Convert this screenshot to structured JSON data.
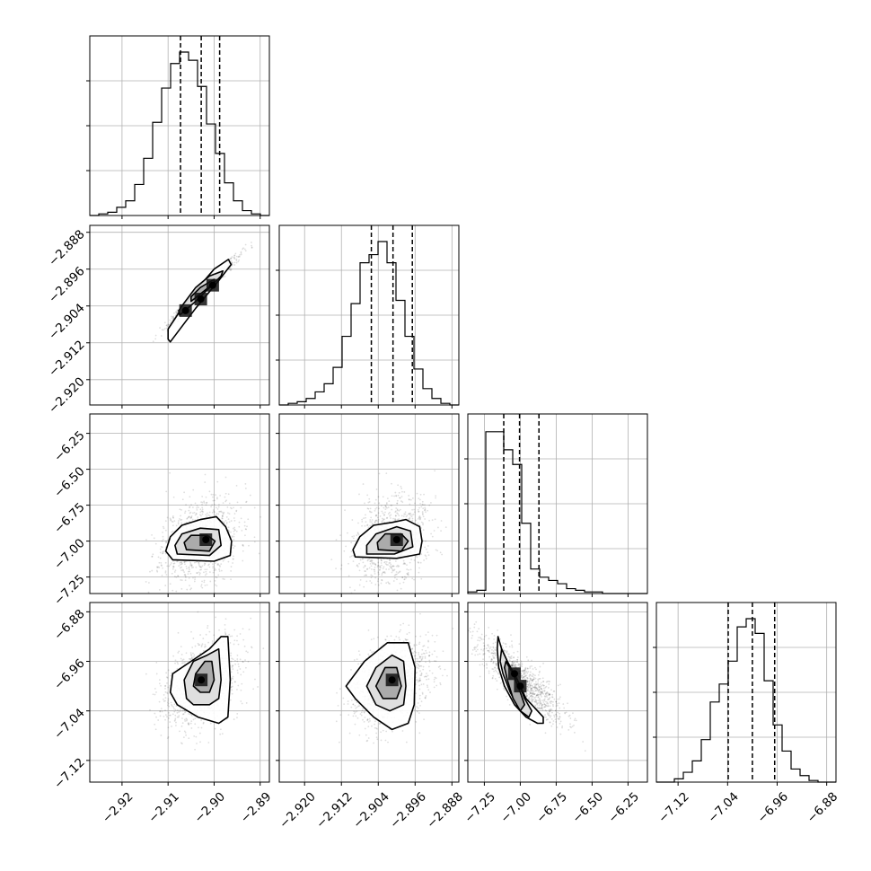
{
  "chart_data": {
    "type": "corner",
    "parameters": [
      {
        "range": [
          -2.927,
          -2.888
        ],
        "ticks": [
          {
            "value": -2.92,
            "label": "−2.92"
          },
          {
            "value": -2.91,
            "label": "−2.91"
          },
          {
            "value": -2.9,
            "label": "−2.90"
          },
          {
            "value": -2.89,
            "label": "−2.89"
          }
        ],
        "quantiles": [
          -2.9073,
          -2.9028,
          -2.8988
        ],
        "hist": {
          "edges_from": -2.927,
          "bin_width": 0.00195,
          "values": [
            0,
            0.01,
            0.02,
            0.05,
            0.09,
            0.19,
            0.35,
            0.57,
            0.78,
            0.93,
            1.0,
            0.95,
            0.79,
            0.56,
            0.38,
            0.2,
            0.09,
            0.03,
            0.01,
            0
          ]
        }
      },
      {
        "range": [
          -2.9255,
          -2.8865
        ],
        "ticks": [
          {
            "value": -2.92,
            "label": "−2.920"
          },
          {
            "value": -2.912,
            "label": "−2.912"
          },
          {
            "value": -2.904,
            "label": "−2.904"
          },
          {
            "value": -2.896,
            "label": "−2.896"
          },
          {
            "value": -2.888,
            "label": "−2.888"
          }
        ],
        "quantiles": [
          -2.9055,
          -2.9008,
          -2.8966
        ],
        "hist": {
          "edges_from": -2.9255,
          "bin_width": 0.00195,
          "values": [
            0,
            0.01,
            0.02,
            0.04,
            0.08,
            0.13,
            0.23,
            0.42,
            0.62,
            0.87,
            0.92,
            1.0,
            0.87,
            0.64,
            0.42,
            0.22,
            0.1,
            0.04,
            0.01,
            0
          ]
        }
      },
      {
        "range": [
          -7.365,
          -6.115
        ],
        "ticks": [
          {
            "value": -7.25,
            "label": "−7.25"
          },
          {
            "value": -7.0,
            "label": "−7.00"
          },
          {
            "value": -6.75,
            "label": "−6.75"
          },
          {
            "value": -6.5,
            "label": "−6.50"
          },
          {
            "value": -6.25,
            "label": "−6.25"
          }
        ],
        "quantiles": [
          -7.115,
          -7.005,
          -6.87
        ],
        "hist": {
          "edges_from": -7.365,
          "bin_width": 0.0625,
          "values": [
            0.01,
            0.02,
            0.99,
            0.99,
            0.88,
            0.79,
            0.43,
            0.15,
            0.1,
            0.08,
            0.06,
            0.03,
            0.02,
            0.01,
            0.01,
            0,
            0,
            0,
            0,
            0
          ]
        }
      },
      {
        "range": [
          -7.155,
          -6.865
        ],
        "ticks": [
          {
            "value": -7.12,
            "label": "−7.12"
          },
          {
            "value": -7.04,
            "label": "−7.04"
          },
          {
            "value": -6.96,
            "label": "−6.96"
          },
          {
            "value": -6.88,
            "label": "−6.88"
          }
        ],
        "quantiles": [
          -7.039,
          -7.0,
          -6.964
        ],
        "hist": {
          "edges_from": -7.155,
          "bin_width": 0.0145,
          "values": [
            0,
            0,
            0.02,
            0.06,
            0.13,
            0.26,
            0.49,
            0.6,
            0.74,
            0.95,
            1.0,
            0.91,
            0.62,
            0.35,
            0.19,
            0.08,
            0.04,
            0.01,
            0,
            0
          ]
        }
      }
    ],
    "pairs": [
      {
        "col": 0,
        "row": 1,
        "mean": [
          -2.9027,
          -2.901
        ],
        "sd": [
          0.0035,
          0.0035
        ],
        "corr": 0.98,
        "n": 1100,
        "seed": 7,
        "contours": [
          [
            [
              -2.9095,
              -2.9118
            ],
            [
              -2.904,
              -2.9045
            ],
            [
              -2.899,
              -2.8985
            ],
            [
              -2.8963,
              -2.895
            ],
            [
              -2.8969,
              -2.8939
            ],
            [
              -2.9,
              -2.896
            ],
            [
              -2.906,
              -2.903
            ],
            [
              -2.91,
              -2.909
            ],
            [
              -2.91,
              -2.9112
            ]
          ],
          [
            [
              -2.9075,
              -2.906
            ],
            [
              -2.904,
              -2.903
            ],
            [
              -2.8985,
              -2.8975
            ],
            [
              -2.8981,
              -2.8964
            ],
            [
              -2.901,
              -2.8975
            ],
            [
              -2.904,
              -2.9
            ],
            [
              -2.907,
              -2.904
            ],
            [
              -2.9077,
              -2.905
            ]
          ],
          [
            [
              -2.905,
              -2.903
            ],
            [
              -2.903,
              -2.9014
            ],
            [
              -2.9,
              -2.899
            ],
            [
              -2.9,
              -2.8982
            ],
            [
              -2.903,
              -2.9
            ],
            [
              -2.905,
              -2.902
            ]
          ]
        ],
        "cores": [
          [
            -2.9062,
            -2.905
          ],
          [
            -2.9029,
            -2.9025
          ],
          [
            -2.9003,
            -2.8995
          ]
        ]
      },
      {
        "col": 0,
        "row": 2,
        "mean": [
          -2.9029,
          -6.99
        ],
        "sd": [
          0.0042,
          0.15
        ],
        "corr": 0.3,
        "n": 1000,
        "seed": 11,
        "contours": [
          [
            [
              -2.909,
              -7.13
            ],
            [
              -2.9,
              -7.14
            ],
            [
              -2.8965,
              -7.1
            ],
            [
              -2.8962,
              -7.0
            ],
            [
              -2.8975,
              -6.9
            ],
            [
              -2.8995,
              -6.83
            ],
            [
              -2.903,
              -6.85
            ],
            [
              -2.907,
              -6.89
            ],
            [
              -2.9095,
              -6.97
            ],
            [
              -2.9105,
              -7.07
            ]
          ],
          [
            [
              -2.908,
              -7.09
            ],
            [
              -2.901,
              -7.1
            ],
            [
              -2.8985,
              -7.03
            ],
            [
              -2.899,
              -6.92
            ],
            [
              -2.903,
              -6.91
            ],
            [
              -2.907,
              -6.95
            ],
            [
              -2.9085,
              -7.03
            ]
          ],
          [
            [
              -2.906,
              -7.06
            ],
            [
              -2.901,
              -7.07
            ],
            [
              -2.8998,
              -7.0
            ],
            [
              -2.9015,
              -6.96
            ],
            [
              -2.905,
              -6.96
            ],
            [
              -2.9065,
              -7.01
            ]
          ]
        ],
        "cores": [
          [
            -2.9018,
            -6.99
          ]
        ]
      },
      {
        "col": 1,
        "row": 2,
        "mean": [
          -2.901,
          -6.99
        ],
        "sd": [
          0.0042,
          0.15
        ],
        "corr": 0.3,
        "n": 1000,
        "seed": 13,
        "contours": [
          [
            [
              -2.909,
              -7.11
            ],
            [
              -2.9,
              -7.12
            ],
            [
              -2.895,
              -7.09
            ],
            [
              -2.8945,
              -7.0
            ],
            [
              -2.895,
              -6.9
            ],
            [
              -2.898,
              -6.85
            ],
            [
              -2.901,
              -6.87
            ],
            [
              -2.905,
              -6.89
            ],
            [
              -2.908,
              -6.97
            ],
            [
              -2.9095,
              -7.06
            ]
          ],
          [
            [
              -2.9065,
              -7.09
            ],
            [
              -2.9005,
              -7.09
            ],
            [
              -2.8965,
              -7.04
            ],
            [
              -2.897,
              -6.93
            ],
            [
              -2.9,
              -6.9
            ],
            [
              -2.9045,
              -6.95
            ],
            [
              -2.9065,
              -7.03
            ]
          ],
          [
            [
              -2.904,
              -7.06
            ],
            [
              -2.899,
              -7.07
            ],
            [
              -2.8975,
              -7.0
            ],
            [
              -2.899,
              -6.95
            ],
            [
              -2.9025,
              -6.95
            ],
            [
              -2.9042,
              -7.01
            ]
          ]
        ],
        "cores": [
          [
            -2.9,
            -6.99
          ]
        ]
      },
      {
        "col": 0,
        "row": 3,
        "mean": [
          -2.9025,
          -6.995
        ],
        "sd": [
          0.004,
          0.035
        ],
        "corr": 0.4,
        "n": 1100,
        "seed": 17,
        "contours": [
          [
            [
              -2.9095,
              -7.01
            ],
            [
              -2.909,
              -6.98
            ],
            [
              -2.905,
              -6.96
            ],
            [
              -2.901,
              -6.94
            ],
            [
              -2.8985,
              -6.92
            ],
            [
              -2.897,
              -6.92
            ],
            [
              -2.8965,
              -6.99
            ],
            [
              -2.897,
              -7.05
            ],
            [
              -2.899,
              -7.06
            ],
            [
              -2.9035,
              -7.05
            ],
            [
              -2.908,
              -7.03
            ]
          ],
          [
            [
              -2.906,
              -7.02
            ],
            [
              -2.9065,
              -6.99
            ],
            [
              -2.9045,
              -6.96
            ],
            [
              -2.9015,
              -6.95
            ],
            [
              -2.899,
              -6.94
            ],
            [
              -2.8985,
              -6.99
            ],
            [
              -2.899,
              -7.02
            ],
            [
              -2.901,
              -7.03
            ],
            [
              -2.9045,
              -7.03
            ]
          ],
          [
            [
              -2.9045,
              -7.0
            ],
            [
              -2.904,
              -6.98
            ],
            [
              -2.902,
              -6.96
            ],
            [
              -2.9005,
              -6.96
            ],
            [
              -2.9,
              -6.99
            ],
            [
              -2.901,
              -7.01
            ],
            [
              -2.903,
              -7.01
            ]
          ]
        ],
        "cores": [
          [
            -2.9028,
            -6.99
          ]
        ]
      },
      {
        "col": 1,
        "row": 3,
        "mean": [
          -2.901,
          -6.995
        ],
        "sd": [
          0.0042,
          0.035
        ],
        "corr": 0.4,
        "n": 1100,
        "seed": 19,
        "contours": [
          [
            [
              -2.911,
              -7.0
            ],
            [
              -2.907,
              -6.96
            ],
            [
              -2.902,
              -6.93
            ],
            [
              -2.8975,
              -6.93
            ],
            [
              -2.896,
              -6.97
            ],
            [
              -2.8962,
              -7.03
            ],
            [
              -2.8975,
              -7.06
            ],
            [
              -2.901,
              -7.07
            ],
            [
              -2.905,
              -7.05
            ],
            [
              -2.909,
              -7.02
            ]
          ],
          [
            [
              -2.9065,
              -7.0
            ],
            [
              -2.9045,
              -6.97
            ],
            [
              -2.901,
              -6.95
            ],
            [
              -2.8985,
              -6.96
            ],
            [
              -2.898,
              -7.0
            ],
            [
              -2.8985,
              -7.03
            ],
            [
              -2.9015,
              -7.04
            ],
            [
              -2.9045,
              -7.03
            ]
          ],
          [
            [
              -2.9045,
              -7.0
            ],
            [
              -2.9025,
              -6.97
            ],
            [
              -2.9,
              -6.97
            ],
            [
              -2.899,
              -7.0
            ],
            [
              -2.9,
              -7.02
            ],
            [
              -2.903,
              -7.02
            ]
          ]
        ],
        "cores": [
          [
            -2.901,
            -6.99
          ]
        ]
      },
      {
        "col": 2,
        "row": 3,
        "mean": [
          -7.0,
          -6.99
        ],
        "sd": [
          0.15,
          0.035
        ],
        "corr": -0.85,
        "n": 1000,
        "seed": 23,
        "contours": [
          [
            [
              -7.155,
              -6.92
            ],
            [
              -7.13,
              -6.94
            ],
            [
              -7.07,
              -6.97
            ],
            [
              -7.02,
              -6.99
            ],
            [
              -6.96,
              -7.02
            ],
            [
              -6.88,
              -7.04
            ],
            [
              -6.84,
              -7.05
            ],
            [
              -6.84,
              -7.06
            ],
            [
              -6.88,
              -7.06
            ],
            [
              -6.96,
              -7.05
            ],
            [
              -7.04,
              -7.03
            ],
            [
              -7.11,
              -7.0
            ],
            [
              -7.15,
              -6.97
            ],
            [
              -7.16,
              -6.94
            ]
          ],
          [
            [
              -7.13,
              -6.94
            ],
            [
              -7.09,
              -6.96
            ],
            [
              -7.02,
              -6.99
            ],
            [
              -6.97,
              -7.02
            ],
            [
              -6.92,
              -7.04
            ],
            [
              -6.94,
              -7.05
            ],
            [
              -7.0,
              -7.04
            ],
            [
              -7.07,
              -7.01
            ],
            [
              -7.12,
              -6.98
            ],
            [
              -7.14,
              -6.96
            ]
          ],
          [
            [
              -7.1,
              -6.96
            ],
            [
              -7.05,
              -6.98
            ],
            [
              -7.0,
              -7.01
            ],
            [
              -6.97,
              -7.03
            ],
            [
              -7.0,
              -7.04
            ],
            [
              -7.05,
              -7.02
            ],
            [
              -7.09,
              -6.99
            ],
            [
              -7.11,
              -6.97
            ]
          ]
        ],
        "cores": [
          [
            -7.04,
            -6.98
          ],
          [
            -7.0,
            -7.0
          ]
        ]
      }
    ]
  }
}
